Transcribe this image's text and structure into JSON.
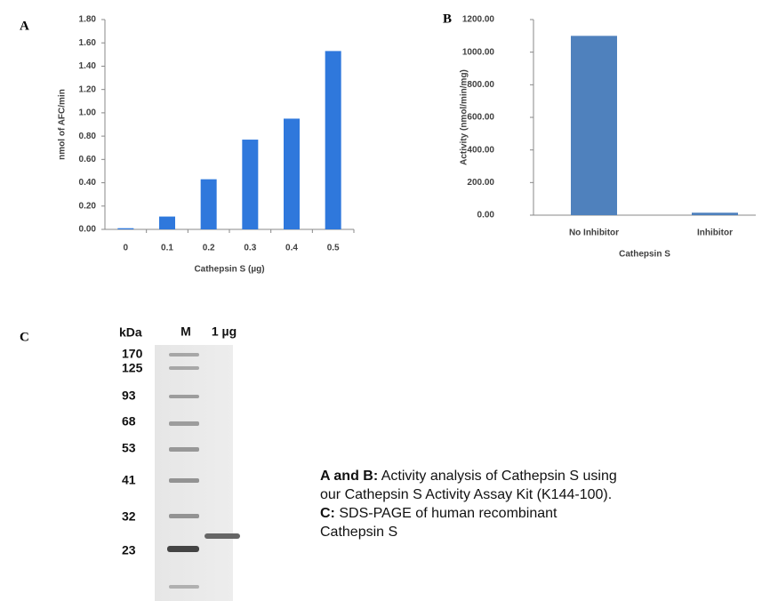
{
  "chart_data": [
    {
      "type": "bar",
      "panel_label": "A",
      "y_label": "nmol of AFC/min",
      "x_label": "Cathepsin S (µg)",
      "categories": [
        "0",
        "0.1",
        "0.2",
        "0.3",
        "0.4",
        "0.5"
      ],
      "values": [
        0.01,
        0.11,
        0.43,
        0.77,
        0.95,
        1.53
      ],
      "color": "#2f78dc",
      "ylim": [
        0,
        1.8
      ],
      "yticks": [
        {
          "value": 0,
          "label": "0.00"
        },
        {
          "value": 0.2,
          "label": "0.20"
        },
        {
          "value": 0.4,
          "label": "0.40"
        },
        {
          "value": 0.6,
          "label": "0.60"
        },
        {
          "value": 0.8,
          "label": "0.80"
        },
        {
          "value": 1.0,
          "label": "1.00"
        },
        {
          "value": 1.2,
          "label": "1.20"
        },
        {
          "value": 1.4,
          "label": "1.40"
        },
        {
          "value": 1.6,
          "label": "1.60"
        },
        {
          "value": 1.8,
          "label": "1.80"
        }
      ],
      "grid": false
    },
    {
      "type": "bar",
      "panel_label": "B",
      "y_label": "Activity (nmol/min/mg)",
      "x_label": "Cathepsin S",
      "categories": [
        "No Inhibitor",
        "Inhibitor"
      ],
      "values": [
        1100,
        15
      ],
      "color": "#4f81bd",
      "ylim": [
        0,
        1200
      ],
      "yticks": [
        {
          "value": 0,
          "label": "0.00"
        },
        {
          "value": 200,
          "label": "200.00"
        },
        {
          "value": 400,
          "label": "400.00"
        },
        {
          "value": 600,
          "label": "600.00"
        },
        {
          "value": 800,
          "label": "800.00"
        },
        {
          "value": 1000,
          "label": "1000.00"
        },
        {
          "value": 1200,
          "label": "1200.00"
        }
      ],
      "grid": false
    }
  ],
  "gel": {
    "panel_label": "C",
    "header": [
      "kDa",
      "M",
      "1 µg"
    ],
    "markers": [
      170,
      125,
      93,
      68,
      53,
      41,
      32,
      23
    ]
  },
  "caption": [
    {
      "bold": "A and B:",
      "text": "Activity analysis of Cathepsin S using our Cathepsin S Activity Assay Kit (K144-100)."
    },
    {
      "bold": "C:",
      "text": "SDS-PAGE of human recombinant Cathepsin S"
    }
  ]
}
